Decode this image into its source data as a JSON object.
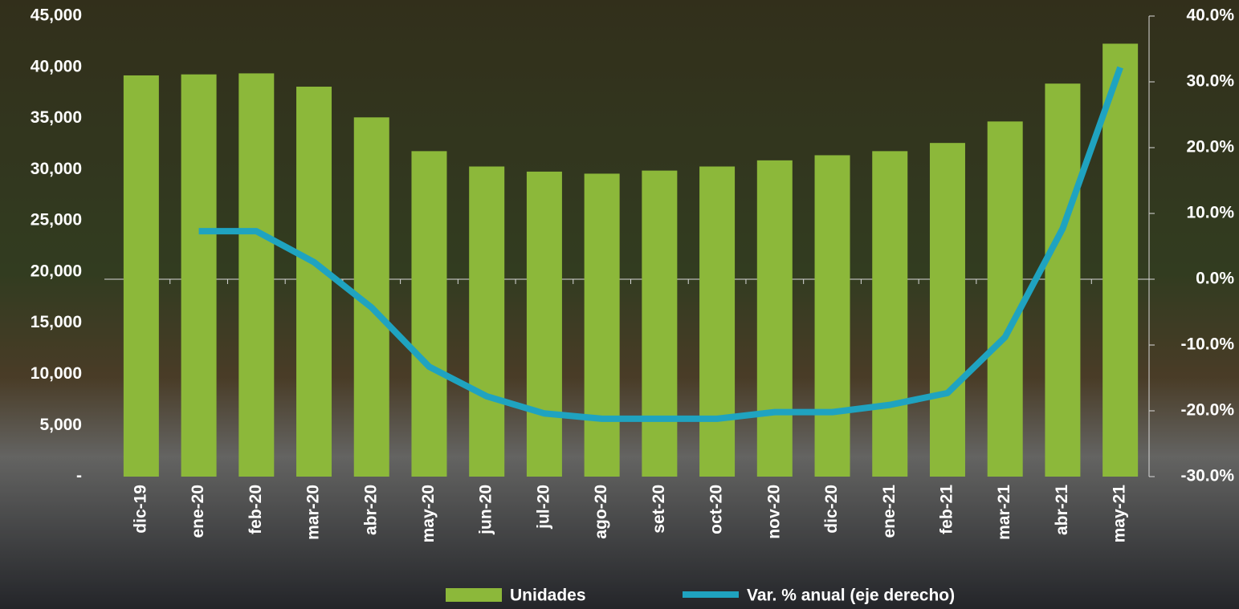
{
  "chart_data": {
    "type": "bar_line",
    "categories": [
      "dic-19",
      "ene-20",
      "feb-20",
      "mar-20",
      "abr-20",
      "may-20",
      "jun-20",
      "jul-20",
      "ago-20",
      "set-20",
      "oct-20",
      "nov-20",
      "dic-20",
      "ene-21",
      "feb-21",
      "mar-21",
      "abr-21",
      "may-21"
    ],
    "series": [
      {
        "name": "Unidades",
        "type": "bar",
        "color": "#8cb83a",
        "axis": "y",
        "values": [
          39200,
          39300,
          39400,
          38100,
          35100,
          31800,
          30300,
          29800,
          29600,
          29900,
          30300,
          30900,
          31400,
          31800,
          32600,
          34700,
          38400,
          42300
        ]
      },
      {
        "name": "Var. % anual  (eje derecho)",
        "type": "line",
        "color": "#1fa3c0",
        "axis": "y2",
        "values": [
          null,
          7.3,
          7.3,
          2.6,
          -4.3,
          -13.3,
          -17.8,
          -20.4,
          -21.2,
          -21.2,
          -21.2,
          -20.2,
          -20.2,
          -19.1,
          -17.3,
          -8.8,
          7.7,
          32.2
        ]
      }
    ],
    "ylim": [
      0,
      45000
    ],
    "yticks": [
      {
        "value": 0,
        "label": "-"
      },
      {
        "value": 5000,
        "label": "5,000"
      },
      {
        "value": 10000,
        "label": "10,000"
      },
      {
        "value": 15000,
        "label": "15,000"
      },
      {
        "value": 20000,
        "label": "20,000"
      },
      {
        "value": 25000,
        "label": "25,000"
      },
      {
        "value": 30000,
        "label": "30,000"
      },
      {
        "value": 35000,
        "label": "35,000"
      },
      {
        "value": 40000,
        "label": "40,000"
      },
      {
        "value": 45000,
        "label": "45,000"
      }
    ],
    "y2lim": [
      -30,
      40
    ],
    "y2ticks": [
      {
        "value": -30,
        "label": "-30.0%"
      },
      {
        "value": -20,
        "label": "-20.0%"
      },
      {
        "value": -10,
        "label": "-10.0%"
      },
      {
        "value": 0,
        "label": "0.0%"
      },
      {
        "value": 10,
        "label": "10.0%"
      },
      {
        "value": 20,
        "label": "20.0%"
      },
      {
        "value": 30,
        "label": "30.0%"
      },
      {
        "value": 40,
        "label": "40.0%"
      }
    ],
    "grid": false,
    "legend": "bottom"
  }
}
